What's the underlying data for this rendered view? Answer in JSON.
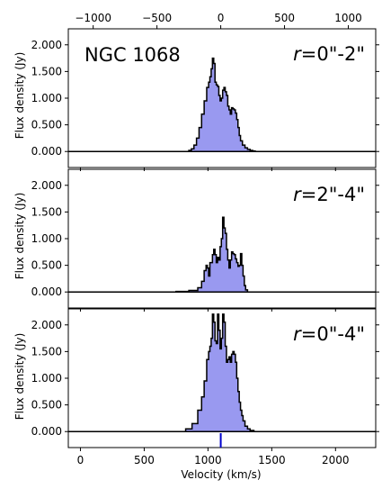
{
  "chart_data": {
    "type": "area",
    "xlabel": "Velocity (km/s)",
    "ylabel": "Flux density (Jy)",
    "xlim": [
      -95,
      2315
    ],
    "ylim": [
      -0.3,
      2.3
    ],
    "x_ticks": [
      "0",
      "500",
      "1000",
      "1500",
      "2000"
    ],
    "x_tick_values": [
      0,
      500,
      1000,
      1500,
      2000
    ],
    "top_axis": {
      "ticks": [
        "−1000",
        "−500",
        "0",
        "500",
        "1000"
      ],
      "tick_values": [
        -1000,
        -500,
        0,
        500,
        1000
      ],
      "zero_at_velocity": 1100
    },
    "y_ticks": [
      "0.000",
      "0.500",
      "1.000",
      "1.500",
      "2.000"
    ],
    "y_tick_values": [
      0,
      0.5,
      1.0,
      1.5,
      2.0
    ],
    "fill_color": "#9999f0",
    "line_color": "#000000",
    "systemic_marker": {
      "velocity": 1100,
      "color": "#0000cc"
    },
    "object_name": "NGC 1068",
    "panels": [
      {
        "label_italic": "r",
        "label_rest": "=0\"-2\"",
        "x": [
          840,
          860,
          880,
          900,
          920,
          940,
          960,
          980,
          1000,
          1010,
          1020,
          1030,
          1040,
          1050,
          1060,
          1070,
          1080,
          1090,
          1100,
          1110,
          1120,
          1130,
          1140,
          1150,
          1160,
          1170,
          1180,
          1190,
          1200,
          1210,
          1220,
          1230,
          1240,
          1250,
          1260,
          1280,
          1300,
          1320,
          1340,
          1360,
          1380
        ],
        "y": [
          0,
          0.02,
          0.05,
          0.12,
          0.25,
          0.45,
          0.7,
          0.95,
          1.2,
          1.3,
          1.4,
          1.55,
          1.75,
          1.65,
          1.3,
          1.25,
          1.22,
          1.05,
          0.95,
          1.0,
          1.15,
          1.2,
          1.12,
          1.05,
          0.85,
          0.78,
          0.7,
          0.82,
          0.8,
          0.78,
          0.72,
          0.6,
          0.45,
          0.3,
          0.2,
          0.12,
          0.07,
          0.04,
          0.02,
          0.01,
          0
        ]
      },
      {
        "label_italic": "r",
        "label_rest": "=2\"-4\"",
        "x": [
          700,
          800,
          900,
          940,
          960,
          980,
          990,
          1000,
          1010,
          1020,
          1030,
          1040,
          1050,
          1060,
          1070,
          1080,
          1090,
          1100,
          1110,
          1120,
          1130,
          1140,
          1150,
          1160,
          1170,
          1180,
          1190,
          1200,
          1210,
          1220,
          1230,
          1240,
          1250,
          1260,
          1270,
          1280,
          1290,
          1300,
          1320
        ],
        "y": [
          0,
          0.01,
          0.03,
          0.08,
          0.2,
          0.4,
          0.5,
          0.45,
          0.3,
          0.55,
          0.55,
          0.7,
          0.8,
          0.7,
          0.55,
          0.65,
          0.6,
          0.85,
          1.0,
          1.4,
          1.2,
          1.1,
          0.8,
          0.6,
          0.45,
          0.6,
          0.75,
          0.72,
          0.7,
          0.62,
          0.55,
          0.48,
          0.5,
          0.72,
          0.5,
          0.3,
          0.12,
          0.04,
          0
        ]
      },
      {
        "label_italic": "r",
        "label_rest": "=0\"-4\"",
        "x": [
          800,
          850,
          900,
          940,
          960,
          980,
          1000,
          1010,
          1020,
          1030,
          1040,
          1050,
          1060,
          1070,
          1080,
          1090,
          1100,
          1110,
          1120,
          1130,
          1140,
          1150,
          1160,
          1170,
          1180,
          1190,
          1200,
          1210,
          1220,
          1230,
          1240,
          1250,
          1260,
          1270,
          1280,
          1300,
          1320,
          1340,
          1380
        ],
        "y": [
          0,
          0.05,
          0.15,
          0.4,
          0.65,
          0.95,
          1.35,
          1.5,
          1.6,
          1.75,
          2.2,
          2.05,
          1.7,
          1.65,
          2.2,
          1.9,
          1.55,
          1.75,
          2.2,
          2.05,
          1.6,
          1.3,
          1.35,
          1.4,
          1.3,
          1.45,
          1.5,
          1.45,
          1.3,
          1.0,
          0.75,
          0.55,
          0.4,
          0.3,
          0.2,
          0.1,
          0.05,
          0.02,
          0
        ]
      }
    ]
  }
}
